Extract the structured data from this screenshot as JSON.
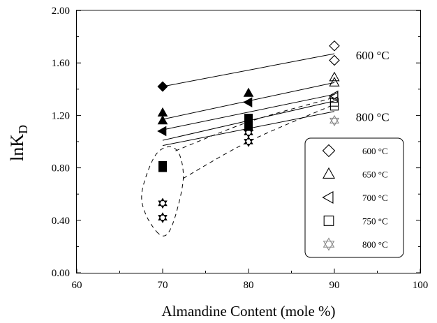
{
  "chart_data": {
    "type": "scatter",
    "xlabel": "Almandine Content (mole %)",
    "ylabel": "lnK",
    "ylabel_sub": "D",
    "xlim": [
      60,
      100
    ],
    "ylim": [
      0.0,
      2.0
    ],
    "x_ticks": [
      "60",
      "70",
      "80",
      "90",
      "100"
    ],
    "y_ticks": [
      "0.00",
      "0.40",
      "0.80",
      "1.20",
      "1.60",
      "2.00"
    ],
    "grid": false,
    "legend_placement": "lower-right",
    "annotations": [
      {
        "text": "600 °C",
        "x": 92.5,
        "y": 1.66
      },
      {
        "text": "800 °C",
        "x": 92.5,
        "y": 1.19
      }
    ],
    "series": [
      {
        "name": "600 °C",
        "marker": "diamond",
        "points": [
          [
            70,
            1.42
          ],
          [
            90,
            1.73
          ],
          [
            90,
            1.62
          ]
        ],
        "filled": [
          true,
          false,
          false
        ],
        "fit": [
          [
            70,
            1.42
          ],
          [
            90,
            1.67
          ]
        ]
      },
      {
        "name": "650 °C",
        "marker": "triangle-up",
        "points": [
          [
            70,
            1.22
          ],
          [
            70,
            1.16
          ],
          [
            80,
            1.37
          ],
          [
            80,
            1.11
          ],
          [
            90,
            1.49
          ],
          [
            90,
            1.45
          ]
        ],
        "filled": [
          true,
          true,
          true,
          true,
          false,
          false
        ],
        "fit": [
          [
            70,
            1.17
          ],
          [
            90,
            1.45
          ]
        ]
      },
      {
        "name": "700 °C",
        "marker": "triangle-left",
        "points": [
          [
            70,
            1.08
          ],
          [
            80,
            1.3
          ],
          [
            90,
            1.34
          ],
          [
            90,
            1.35
          ]
        ],
        "filled": [
          true,
          true,
          false,
          false
        ],
        "fit": [
          [
            70,
            1.09
          ],
          [
            90,
            1.36
          ]
        ]
      },
      {
        "name": "750 °C",
        "marker": "square",
        "points": [
          [
            70,
            0.82
          ],
          [
            70,
            0.8
          ],
          [
            80,
            1.18
          ],
          [
            80,
            1.14
          ],
          [
            80,
            1.12
          ],
          [
            90,
            1.27
          ],
          [
            90,
            1.3
          ]
        ],
        "filled": [
          true,
          true,
          true,
          true,
          true,
          false,
          false
        ],
        "fit": [
          [
            70,
            1.01
          ],
          [
            90,
            1.31
          ]
        ]
      },
      {
        "name": "800 °C",
        "marker": "star6",
        "points": [
          [
            70,
            0.53
          ],
          [
            70,
            0.42
          ],
          [
            80,
            1.0
          ],
          [
            80,
            1.07
          ],
          [
            90,
            1.16
          ]
        ],
        "filled": [
          true,
          true,
          true,
          true,
          false
        ],
        "fit": [
          [
            70,
            0.97
          ],
          [
            90,
            1.23
          ]
        ]
      }
    ],
    "dashed_outline": {
      "loop": [
        [
          69.5,
          0.3
        ],
        [
          68.0,
          0.45
        ],
        [
          67.6,
          0.62
        ],
        [
          69.0,
          0.88
        ],
        [
          70.6,
          0.96
        ],
        [
          71.9,
          0.91
        ],
        [
          72.4,
          0.72
        ],
        [
          71.6,
          0.46
        ],
        [
          70.6,
          0.3
        ],
        [
          69.5,
          0.3
        ]
      ],
      "upper": [
        [
          71.5,
          0.93
        ],
        [
          80,
          1.15
        ],
        [
          88.5,
          1.31
        ],
        [
          90.4,
          1.34
        ]
      ],
      "lower": [
        [
          72.4,
          0.72
        ],
        [
          80,
          1.0
        ],
        [
          89.5,
          1.27
        ]
      ]
    }
  },
  "colors": {
    "axis": "#000000",
    "marker": "#000000",
    "open_marker_800": "#888888",
    "background": "#ffffff"
  }
}
